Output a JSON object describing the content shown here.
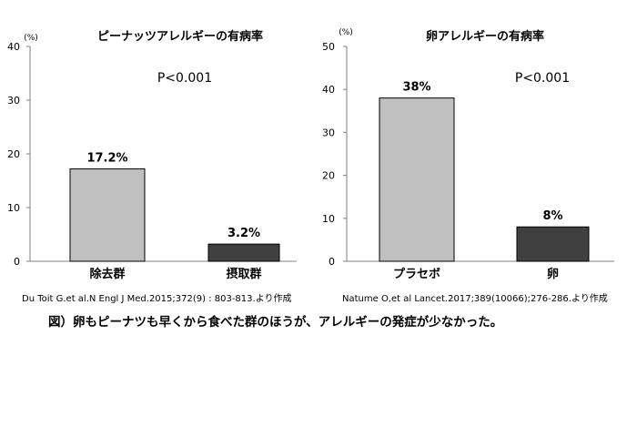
{
  "chart_data": [
    {
      "type": "bar",
      "title": "ピーナッツアレルギーの有病率",
      "unit": "(%)",
      "annotation": "P<0.001",
      "categories": [
        "除去群",
        "摂取群"
      ],
      "values": [
        17.2,
        3.2
      ],
      "value_labels": [
        "17.2%",
        "3.2%"
      ],
      "ylim": [
        0,
        40
      ],
      "yticks": [
        0,
        10,
        20,
        30,
        40
      ],
      "colors": [
        "#c0c0c0",
        "#404040"
      ],
      "grid": false,
      "citation": "Du Toit G.et al.N Engl J Med.2015;372(9) : 803-813.より作成"
    },
    {
      "type": "bar",
      "title": "卵アレルギーの有病率",
      "unit": "(%)",
      "annotation": "P<0.001",
      "categories": [
        "プラセボ",
        "卵"
      ],
      "values": [
        38,
        8
      ],
      "value_labels": [
        "38%",
        "8%"
      ],
      "ylim": [
        0,
        50
      ],
      "yticks": [
        0,
        10,
        20,
        30,
        40,
        50
      ],
      "colors": [
        "#c0c0c0",
        "#404040"
      ],
      "grid": false,
      "citation": "Natume O,et al Lancet.2017;389(10066);276-286.より作成"
    }
  ],
  "caption": "図）卵もピーナツも早くから食べた群のほうが、アレルギーの発症が少なかった。"
}
